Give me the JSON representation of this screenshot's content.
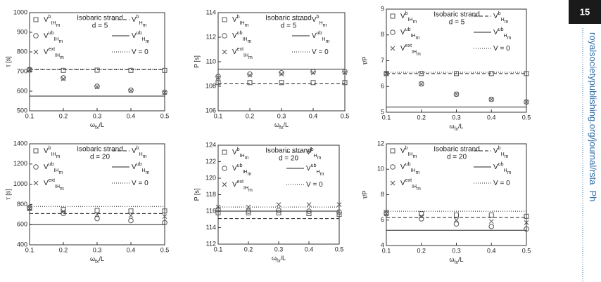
{
  "chart_data": [
    {
      "type": "scatter",
      "annotation": [
        "Isobaric strand",
        "d = 5"
      ],
      "x_label": {
        "base": "ω",
        "sub": "fx",
        "rest": "/L"
      },
      "y_label": "τ [s]",
      "x": [
        0.1,
        0.2,
        0.3,
        0.4,
        0.5
      ],
      "xlim": [
        0.1,
        0.5
      ],
      "xticks": [
        0.1,
        0.2,
        0.3,
        0.4,
        0.5
      ],
      "ylim": [
        500,
        1000
      ],
      "yticks": [
        500,
        600,
        700,
        800,
        900,
        1000
      ],
      "series": [
        {
          "name": {
            "base": "V",
            "sup": "b",
            "sub": "IH",
            "sub2": "m"
          },
          "marker": "square",
          "color": "#555555",
          "values": [
            708,
            706,
            707,
            706,
            706
          ]
        },
        {
          "name": {
            "base": "V",
            "sup": "ub",
            "sub": "IH",
            "sub2": "m"
          },
          "marker": "circle",
          "color": "#555555",
          "values": [
            710,
            668,
            625,
            605,
            595
          ]
        },
        {
          "name": {
            "base": "V",
            "sup": "ext",
            "sub": "IH",
            "sub2": "m"
          },
          "marker": "cross",
          "color": "#555555",
          "values": [
            709,
            663,
            622,
            603,
            593
          ]
        }
      ],
      "reference_lines": [
        {
          "name": {
            "base": "V",
            "sup": "b",
            "sub": "H",
            "sub2": "m"
          },
          "style": "dashed",
          "value": 710
        },
        {
          "name": {
            "base": "V",
            "sup": "ub",
            "sub": "H",
            "sub2": "m"
          },
          "style": "solid",
          "value": 575
        },
        {
          "name": {
            "base": "V = 0"
          },
          "style": "dotted",
          "value": 712
        }
      ]
    },
    {
      "type": "scatter",
      "annotation": [
        "Isobaric strand",
        "d = 5"
      ],
      "x_label": {
        "base": "ω",
        "sub": "fx",
        "rest": "/L"
      },
      "y_label": "P [s]",
      "x": [
        0.1,
        0.2,
        0.3,
        0.4,
        0.5
      ],
      "xlim": [
        0.1,
        0.5
      ],
      "xticks": [
        0.1,
        0.2,
        0.3,
        0.4,
        0.5
      ],
      "ylim": [
        106,
        114
      ],
      "yticks": [
        106,
        108,
        110,
        112,
        114
      ],
      "series": [
        {
          "name": {
            "base": "V",
            "sup": "b",
            "sub": "IH",
            "sub2": "m"
          },
          "marker": "square",
          "color": "#555555",
          "values": [
            108.3,
            108.3,
            108.3,
            108.3,
            108.3
          ]
        },
        {
          "name": {
            "base": "V",
            "sup": "ub",
            "sub": "IH",
            "sub2": "m"
          },
          "marker": "circle",
          "color": "#555555",
          "values": [
            108.8,
            109.0,
            109.1,
            109.2,
            109.2
          ]
        },
        {
          "name": {
            "base": "V",
            "sup": "ext",
            "sub": "IH",
            "sub2": "m"
          },
          "marker": "cross",
          "color": "#555555",
          "values": [
            108.7,
            108.9,
            109.0,
            109.1,
            109.1
          ]
        }
      ],
      "reference_lines": [
        {
          "name": {
            "base": "V",
            "sup": "b",
            "sub": "H",
            "sub2": "m"
          },
          "style": "dashed",
          "value": 108.2
        },
        {
          "name": {
            "base": "V",
            "sup": "ub",
            "sub": "H",
            "sub2": "m"
          },
          "style": "solid",
          "value": 109.4
        },
        {
          "name": {
            "base": "V = 0"
          },
          "style": "dotted",
          "value": 109.4
        }
      ]
    },
    {
      "type": "scatter",
      "annotation": [
        "Isobaric strand",
        "d = 5"
      ],
      "x_label": {
        "base": "ω",
        "sub": "fx",
        "rest": "/L"
      },
      "y_label": "τ/P",
      "x": [
        0.1,
        0.2,
        0.3,
        0.4,
        0.5
      ],
      "xlim": [
        0.1,
        0.5
      ],
      "xticks": [
        0.1,
        0.2,
        0.3,
        0.4,
        0.5
      ],
      "ylim": [
        5,
        9
      ],
      "yticks": [
        5,
        6,
        7,
        8,
        9
      ],
      "series": [
        {
          "name": {
            "base": "V",
            "sup": "b",
            "sub": "IH",
            "sub2": "m"
          },
          "marker": "square",
          "color": "#555555",
          "values": [
            6.5,
            6.5,
            6.5,
            6.5,
            6.5
          ]
        },
        {
          "name": {
            "base": "V",
            "sup": "ub",
            "sub": "IH",
            "sub2": "m"
          },
          "marker": "circle",
          "color": "#555555",
          "values": [
            6.5,
            6.1,
            5.7,
            5.5,
            5.4
          ]
        },
        {
          "name": {
            "base": "V",
            "sup": "ext",
            "sub": "IH",
            "sub2": "m"
          },
          "marker": "cross",
          "color": "#555555",
          "values": [
            6.5,
            6.1,
            5.7,
            5.5,
            5.4
          ]
        }
      ],
      "reference_lines": [
        {
          "name": {
            "base": "V",
            "sup": "b",
            "sub": "H",
            "sub2": "m"
          },
          "style": "dashed",
          "value": 6.5
        },
        {
          "name": {
            "base": "V",
            "sup": "ub",
            "sub": "H",
            "sub2": "m"
          },
          "style": "solid",
          "value": 5.2
        },
        {
          "name": {
            "base": "V = 0"
          },
          "style": "dotted",
          "value": 6.55
        }
      ]
    },
    {
      "type": "scatter",
      "annotation": [
        "Isobaric strand",
        "d = 20"
      ],
      "x_label": {
        "base": "ω",
        "sub": "fx",
        "rest": "/L"
      },
      "y_label": "τ [s]",
      "x": [
        0.1,
        0.2,
        0.3,
        0.4,
        0.5
      ],
      "xlim": [
        0.1,
        0.5
      ],
      "xticks": [
        0.1,
        0.2,
        0.3,
        0.4,
        0.5
      ],
      "ylim": [
        400,
        1400
      ],
      "yticks": [
        400,
        600,
        800,
        1000,
        1200,
        1400
      ],
      "series": [
        {
          "name": {
            "base": "V",
            "sup": "b",
            "sub": "IH",
            "sub2": "m"
          },
          "marker": "square",
          "color": "#555555",
          "values": [
            760,
            750,
            740,
            735,
            735
          ]
        },
        {
          "name": {
            "base": "V",
            "sup": "ub",
            "sub": "IH",
            "sub2": "m"
          },
          "marker": "circle",
          "color": "#555555",
          "values": [
            770,
            710,
            660,
            640,
            620
          ]
        },
        {
          "name": {
            "base": "V",
            "sup": "ext",
            "sub": "IH",
            "sub2": "m"
          },
          "marker": "cross",
          "color": "#555555",
          "values": [
            760,
            730,
            700,
            690,
            680
          ]
        }
      ],
      "reference_lines": [
        {
          "name": {
            "base": "V",
            "sup": "b",
            "sub": "H",
            "sub2": "m"
          },
          "style": "dashed",
          "value": 710
        },
        {
          "name": {
            "base": "V",
            "sup": "ub",
            "sub": "H",
            "sub2": "m"
          },
          "style": "solid",
          "value": 600
        },
        {
          "name": {
            "base": "V = 0"
          },
          "style": "dotted",
          "value": 780
        }
      ]
    },
    {
      "type": "scatter",
      "annotation": [
        "Isobaric strand",
        "d = 20"
      ],
      "x_label": {
        "base": "ω",
        "sub": "fx",
        "rest": "/L"
      },
      "y_label": "P [s]",
      "x": [
        0.1,
        0.2,
        0.3,
        0.4,
        0.5
      ],
      "xlim": [
        0.1,
        0.5
      ],
      "xticks": [
        0.1,
        0.2,
        0.3,
        0.4,
        0.5
      ],
      "ylim": [
        112,
        124
      ],
      "yticks": [
        112,
        114,
        116,
        118,
        120,
        122,
        124
      ],
      "series": [
        {
          "name": {
            "base": "V",
            "sup": "b",
            "sub": "IH",
            "sub2": "m"
          },
          "marker": "square",
          "color": "#555555",
          "values": [
            115.8,
            115.8,
            115.8,
            115.7,
            115.6
          ]
        },
        {
          "name": {
            "base": "V",
            "sup": "ub",
            "sub": "IH",
            "sub2": "m"
          },
          "marker": "circle",
          "color": "#555555",
          "values": [
            116.2,
            116.0,
            116.1,
            116.0,
            115.9
          ]
        },
        {
          "name": {
            "base": "V",
            "sup": "ext",
            "sub": "IH",
            "sub2": "m"
          },
          "marker": "cross",
          "color": "#555555",
          "values": [
            116.5,
            116.5,
            116.8,
            116.8,
            116.8
          ]
        }
      ],
      "reference_lines": [
        {
          "name": {
            "base": "V",
            "sup": "b",
            "sub": "H",
            "sub2": "m"
          },
          "style": "dashed",
          "value": 115.1
        },
        {
          "name": {
            "base": "V",
            "sup": "ub",
            "sub": "H",
            "sub2": "m"
          },
          "style": "solid",
          "value": 116.0
        },
        {
          "name": {
            "base": "V = 0"
          },
          "style": "dotted",
          "value": 116.5
        }
      ]
    },
    {
      "type": "scatter",
      "annotation": [
        "Isobaric strand",
        "d = 20"
      ],
      "x_label": {
        "base": "ω",
        "sub": "fx",
        "rest": "/L"
      },
      "y_label": "τ/P",
      "x": [
        0.1,
        0.2,
        0.3,
        0.4,
        0.5
      ],
      "xlim": [
        0.1,
        0.5
      ],
      "xticks": [
        0.1,
        0.2,
        0.3,
        0.4,
        0.5
      ],
      "ylim": [
        4,
        12
      ],
      "yticks": [
        4,
        6,
        8,
        10,
        12
      ],
      "series": [
        {
          "name": {
            "base": "V",
            "sup": "b",
            "sub": "IH",
            "sub2": "m"
          },
          "marker": "square",
          "color": "#555555",
          "values": [
            6.6,
            6.5,
            6.4,
            6.4,
            6.3
          ]
        },
        {
          "name": {
            "base": "V",
            "sup": "ub",
            "sub": "IH",
            "sub2": "m"
          },
          "marker": "circle",
          "color": "#555555",
          "values": [
            6.5,
            6.1,
            5.7,
            5.5,
            5.3
          ]
        },
        {
          "name": {
            "base": "V",
            "sup": "ext",
            "sub": "IH",
            "sub2": "m"
          },
          "marker": "cross",
          "color": "#555555",
          "values": [
            6.5,
            6.3,
            6.0,
            5.9,
            5.8
          ]
        }
      ],
      "reference_lines": [
        {
          "name": {
            "base": "V",
            "sup": "b",
            "sub": "H",
            "sub2": "m"
          },
          "style": "dashed",
          "value": 6.2
        },
        {
          "name": {
            "base": "V",
            "sup": "ub",
            "sub": "H",
            "sub2": "m"
          },
          "style": "solid",
          "value": 5.2
        },
        {
          "name": {
            "base": "V = 0"
          },
          "style": "dotted",
          "value": 6.7
        }
      ]
    }
  ],
  "page": {
    "number": "15",
    "sidebar": [
      "royalsocietypublishing.org/journal/rsta",
      "Ph"
    ]
  }
}
